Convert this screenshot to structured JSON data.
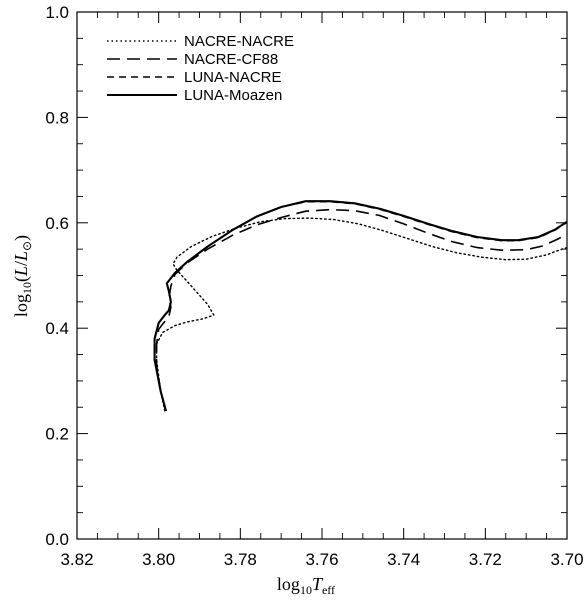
{
  "chart_data": {
    "type": "line",
    "title": "",
    "xlabel": "log10 Teff",
    "ylabel": "log10(L/L⊙)",
    "xlim": [
      3.82,
      3.7
    ],
    "ylim": [
      0.0,
      1.0
    ],
    "x_reversed": true,
    "grid": false,
    "legend_position": "top-left",
    "x_ticks": [
      "3.82",
      "3.80",
      "3.78",
      "3.76",
      "3.74",
      "3.72",
      "3.70"
    ],
    "y_ticks": [
      "0.0",
      "0.2",
      "0.4",
      "0.6",
      "0.8",
      "1.0"
    ],
    "series": [
      {
        "name": "NACRE-NACRE",
        "style": "dotted",
        "points": [
          [
            3.7985,
            0.243
          ],
          [
            3.7995,
            0.28
          ],
          [
            3.8005,
            0.34
          ],
          [
            3.8005,
            0.37
          ],
          [
            3.799,
            0.392
          ],
          [
            3.796,
            0.405
          ],
          [
            3.793,
            0.412
          ],
          [
            3.789,
            0.418
          ],
          [
            3.7865,
            0.425
          ],
          [
            3.788,
            0.445
          ],
          [
            3.792,
            0.48
          ],
          [
            3.7955,
            0.51
          ],
          [
            3.7965,
            0.522
          ],
          [
            3.7955,
            0.535
          ],
          [
            3.792,
            0.555
          ],
          [
            3.787,
            0.574
          ],
          [
            3.781,
            0.59
          ],
          [
            3.775,
            0.602
          ],
          [
            3.769,
            0.608
          ],
          [
            3.763,
            0.609
          ],
          [
            3.757,
            0.606
          ],
          [
            3.751,
            0.598
          ],
          [
            3.745,
            0.585
          ],
          [
            3.739,
            0.57
          ],
          [
            3.733,
            0.555
          ],
          [
            3.727,
            0.543
          ],
          [
            3.721,
            0.535
          ],
          [
            3.715,
            0.53
          ],
          [
            3.71,
            0.531
          ],
          [
            3.705,
            0.539
          ],
          [
            3.702,
            0.548
          ],
          [
            3.7,
            0.553
          ]
        ]
      },
      {
        "name": "NACRE-CF88",
        "style": "long-dash",
        "points": [
          [
            3.7983,
            0.243
          ],
          [
            3.7995,
            0.28
          ],
          [
            3.8005,
            0.33
          ],
          [
            3.8005,
            0.37
          ],
          [
            3.8,
            0.398
          ],
          [
            3.799,
            0.408
          ],
          [
            3.7975,
            0.422
          ],
          [
            3.797,
            0.44
          ],
          [
            3.7975,
            0.456
          ],
          [
            3.797,
            0.48
          ],
          [
            3.796,
            0.502
          ],
          [
            3.793,
            0.524
          ],
          [
            3.788,
            0.55
          ],
          [
            3.782,
            0.576
          ],
          [
            3.776,
            0.596
          ],
          [
            3.77,
            0.61
          ],
          [
            3.764,
            0.622
          ],
          [
            3.758,
            0.625
          ],
          [
            3.752,
            0.623
          ],
          [
            3.746,
            0.614
          ],
          [
            3.74,
            0.598
          ],
          [
            3.734,
            0.58
          ],
          [
            3.728,
            0.564
          ],
          [
            3.722,
            0.553
          ],
          [
            3.716,
            0.548
          ],
          [
            3.71,
            0.549
          ],
          [
            3.706,
            0.556
          ],
          [
            3.702,
            0.57
          ],
          [
            3.7,
            0.579
          ]
        ]
      },
      {
        "name": "LUNA-NACRE",
        "style": "short-dash",
        "points": [
          [
            3.7982,
            0.243
          ],
          [
            3.7995,
            0.28
          ],
          [
            3.801,
            0.34
          ],
          [
            3.801,
            0.38
          ],
          [
            3.8,
            0.41
          ],
          [
            3.7985,
            0.425
          ],
          [
            3.7975,
            0.434
          ],
          [
            3.797,
            0.45
          ],
          [
            3.7975,
            0.47
          ],
          [
            3.798,
            0.485
          ],
          [
            3.796,
            0.505
          ],
          [
            3.793,
            0.526
          ],
          [
            3.788,
            0.555
          ],
          [
            3.782,
            0.586
          ],
          [
            3.776,
            0.612
          ],
          [
            3.77,
            0.63
          ],
          [
            3.764,
            0.64
          ],
          [
            3.758,
            0.64
          ],
          [
            3.752,
            0.636
          ],
          [
            3.746,
            0.626
          ],
          [
            3.74,
            0.612
          ],
          [
            3.734,
            0.597
          ],
          [
            3.728,
            0.583
          ],
          [
            3.722,
            0.572
          ],
          [
            3.716,
            0.566
          ],
          [
            3.712,
            0.566
          ],
          [
            3.707,
            0.572
          ],
          [
            3.703,
            0.586
          ],
          [
            3.7,
            0.601
          ]
        ]
      },
      {
        "name": "LUNA-Moazen",
        "style": "solid",
        "points": [
          [
            3.7982,
            0.243
          ],
          [
            3.7995,
            0.28
          ],
          [
            3.801,
            0.34
          ],
          [
            3.801,
            0.38
          ],
          [
            3.8,
            0.41
          ],
          [
            3.7985,
            0.425
          ],
          [
            3.7975,
            0.434
          ],
          [
            3.797,
            0.45
          ],
          [
            3.7975,
            0.47
          ],
          [
            3.798,
            0.485
          ],
          [
            3.796,
            0.505
          ],
          [
            3.793,
            0.526
          ],
          [
            3.788,
            0.555
          ],
          [
            3.782,
            0.586
          ],
          [
            3.776,
            0.612
          ],
          [
            3.77,
            0.63
          ],
          [
            3.764,
            0.641
          ],
          [
            3.758,
            0.641
          ],
          [
            3.752,
            0.637
          ],
          [
            3.746,
            0.627
          ],
          [
            3.74,
            0.613
          ],
          [
            3.734,
            0.598
          ],
          [
            3.728,
            0.584
          ],
          [
            3.722,
            0.573
          ],
          [
            3.716,
            0.567
          ],
          [
            3.712,
            0.567
          ],
          [
            3.707,
            0.573
          ],
          [
            3.703,
            0.587
          ],
          [
            3.7,
            0.602
          ]
        ]
      }
    ]
  }
}
